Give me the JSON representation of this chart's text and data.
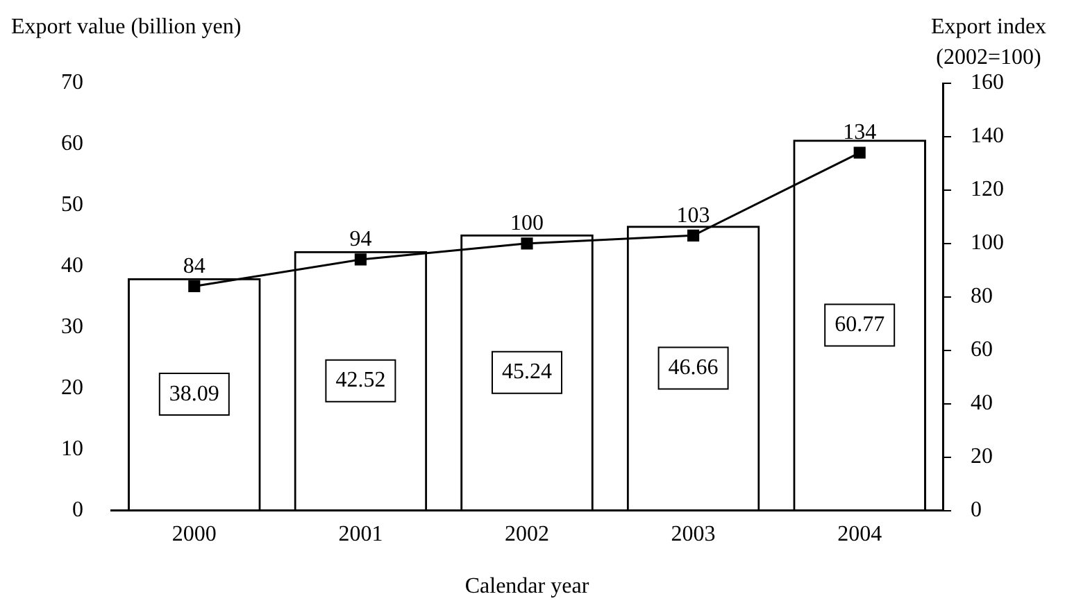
{
  "chart_data": {
    "type": "bar",
    "categories": [
      "2000",
      "2001",
      "2002",
      "2003",
      "2004"
    ],
    "series": [
      {
        "color": "#000000",
        "values": [
          38.09,
          42.52,
          45.24,
          46.66,
          60.77
        ]
      },
      {
        "type": "line",
        "axis": "y2",
        "color": "#000000",
        "values": [
          84,
          94,
          100,
          103,
          134
        ]
      }
    ],
    "xlabel": "Calendar year",
    "ylabel": "Export value (billion yen)",
    "y2label": "Export index\n(2002=100)",
    "ylim": [
      0,
      70
    ],
    "yticks": [
      0,
      10,
      20,
      30,
      40,
      50,
      60,
      70
    ],
    "y2lim": [
      0,
      160
    ],
    "y2ticks": [
      0,
      20,
      40,
      60,
      80,
      100,
      120,
      140,
      160
    ],
    "marker": "square",
    "data_labels": true,
    "grid": false,
    "legend": false
  }
}
